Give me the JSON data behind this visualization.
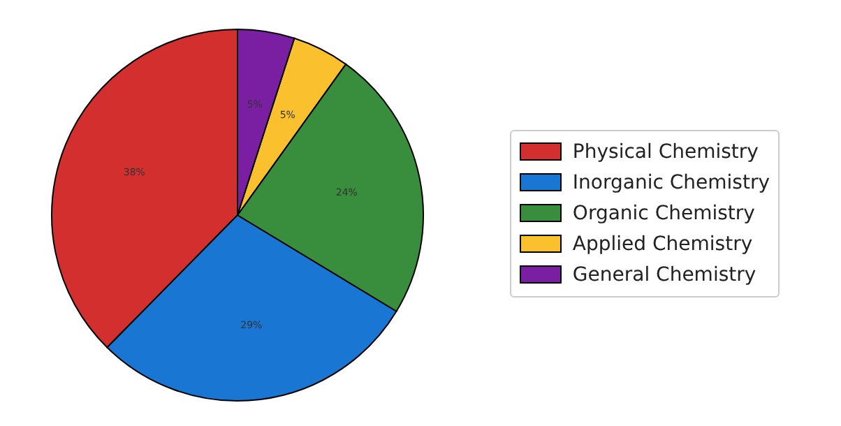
{
  "chart_data": {
    "type": "pie",
    "categories": [
      "Physical Chemistry",
      "Inorganic Chemistry",
      "Organic Chemistry",
      "Applied Chemistry",
      "General Chemistry"
    ],
    "values": [
      38,
      29,
      24,
      5,
      5
    ],
    "colors": [
      "#d32f2f",
      "#1976d2",
      "#388e3c",
      "#fbc02d",
      "#7b1fa2"
    ],
    "value_labels": [
      "38%",
      "29%",
      "24%",
      "5%",
      "5%"
    ],
    "legend": "right"
  }
}
